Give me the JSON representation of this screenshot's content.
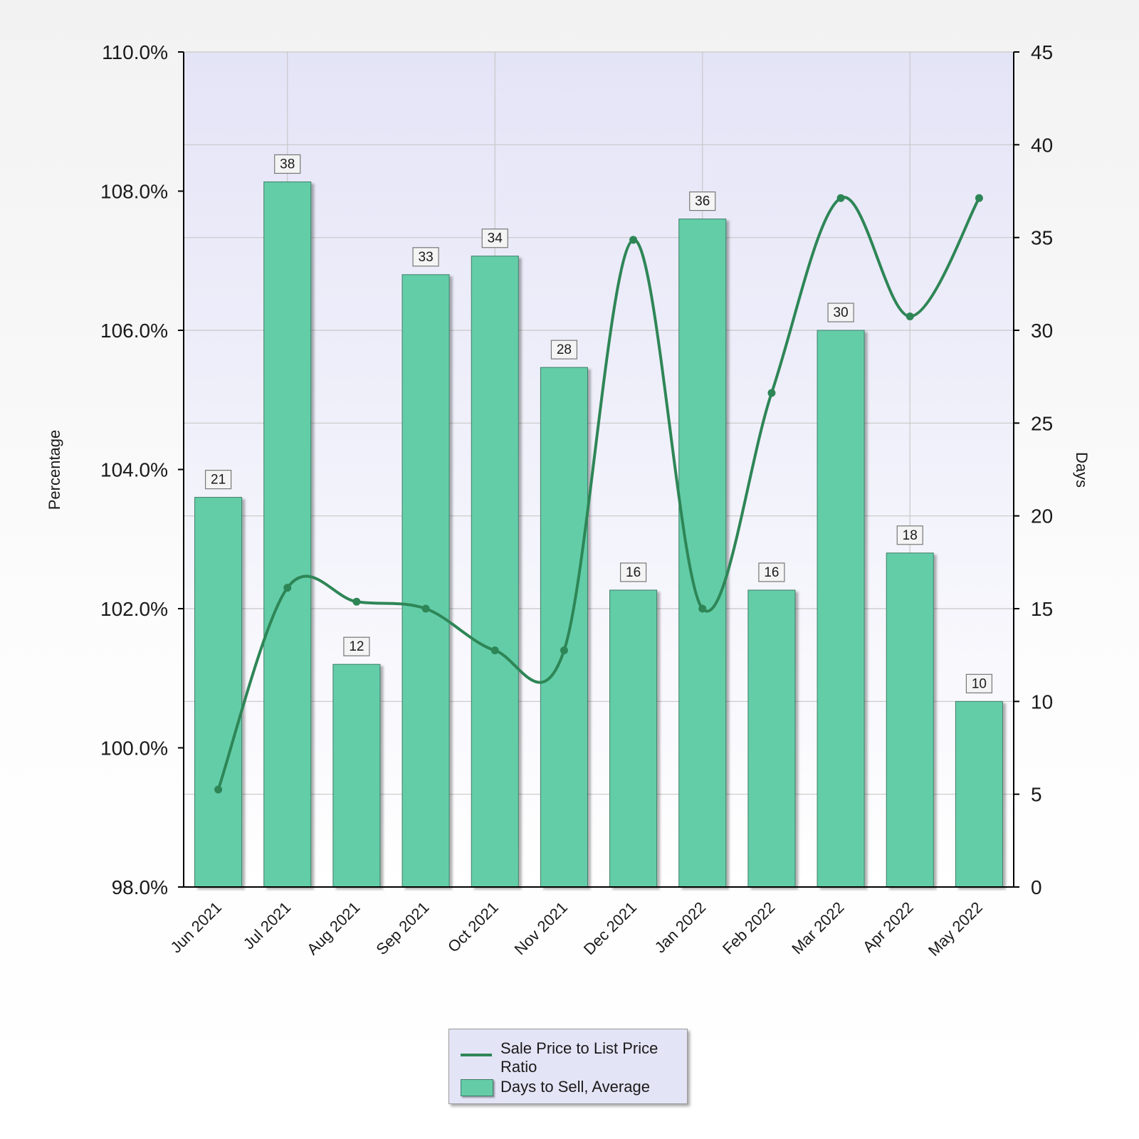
{
  "chart_data": {
    "type": "bar+line",
    "categories": [
      "Jun 2021",
      "Jul 2021",
      "Aug 2021",
      "Sep 2021",
      "Oct 2021",
      "Nov 2021",
      "Dec 2021",
      "Jan 2022",
      "Feb 2022",
      "Mar 2022",
      "Apr 2022",
      "May 2022"
    ],
    "bars": {
      "name": "Days to Sell, Average",
      "axis": "right",
      "values": [
        21,
        38,
        12,
        33,
        34,
        28,
        16,
        36,
        16,
        30,
        18,
        10
      ]
    },
    "line": {
      "name": "Sale Price to List Price Ratio",
      "axis": "left",
      "smooth": true,
      "values": [
        99.4,
        102.3,
        102.1,
        102.0,
        101.4,
        101.4,
        107.3,
        102.0,
        105.1,
        107.9,
        106.2,
        107.9
      ]
    },
    "ylabel_left": "Percentage",
    "ylabel_right": "Days",
    "ylim_left": [
      98,
      110
    ],
    "ylim_right": [
      0,
      45
    ],
    "yticks_left": [
      "98.0%",
      "100.0%",
      "102.0%",
      "104.0%",
      "106.0%",
      "108.0%",
      "110.0%"
    ],
    "yticks_right": [
      "0",
      "5",
      "10",
      "15",
      "20",
      "25",
      "30",
      "35",
      "40",
      "45"
    ],
    "grid": true,
    "legend_position": "bottom",
    "colors": {
      "bar": "#64cda8",
      "bar_border": "#3f7d66",
      "line": "#2e8656",
      "plot_bg_top": "#e4e4f7",
      "plot_bg_bottom": "#ffffff",
      "grid": "#c8c8c8"
    }
  },
  "legend": {
    "line_label": "Sale Price to List Price Ratio",
    "bar_label": "Days to Sell, Average"
  }
}
